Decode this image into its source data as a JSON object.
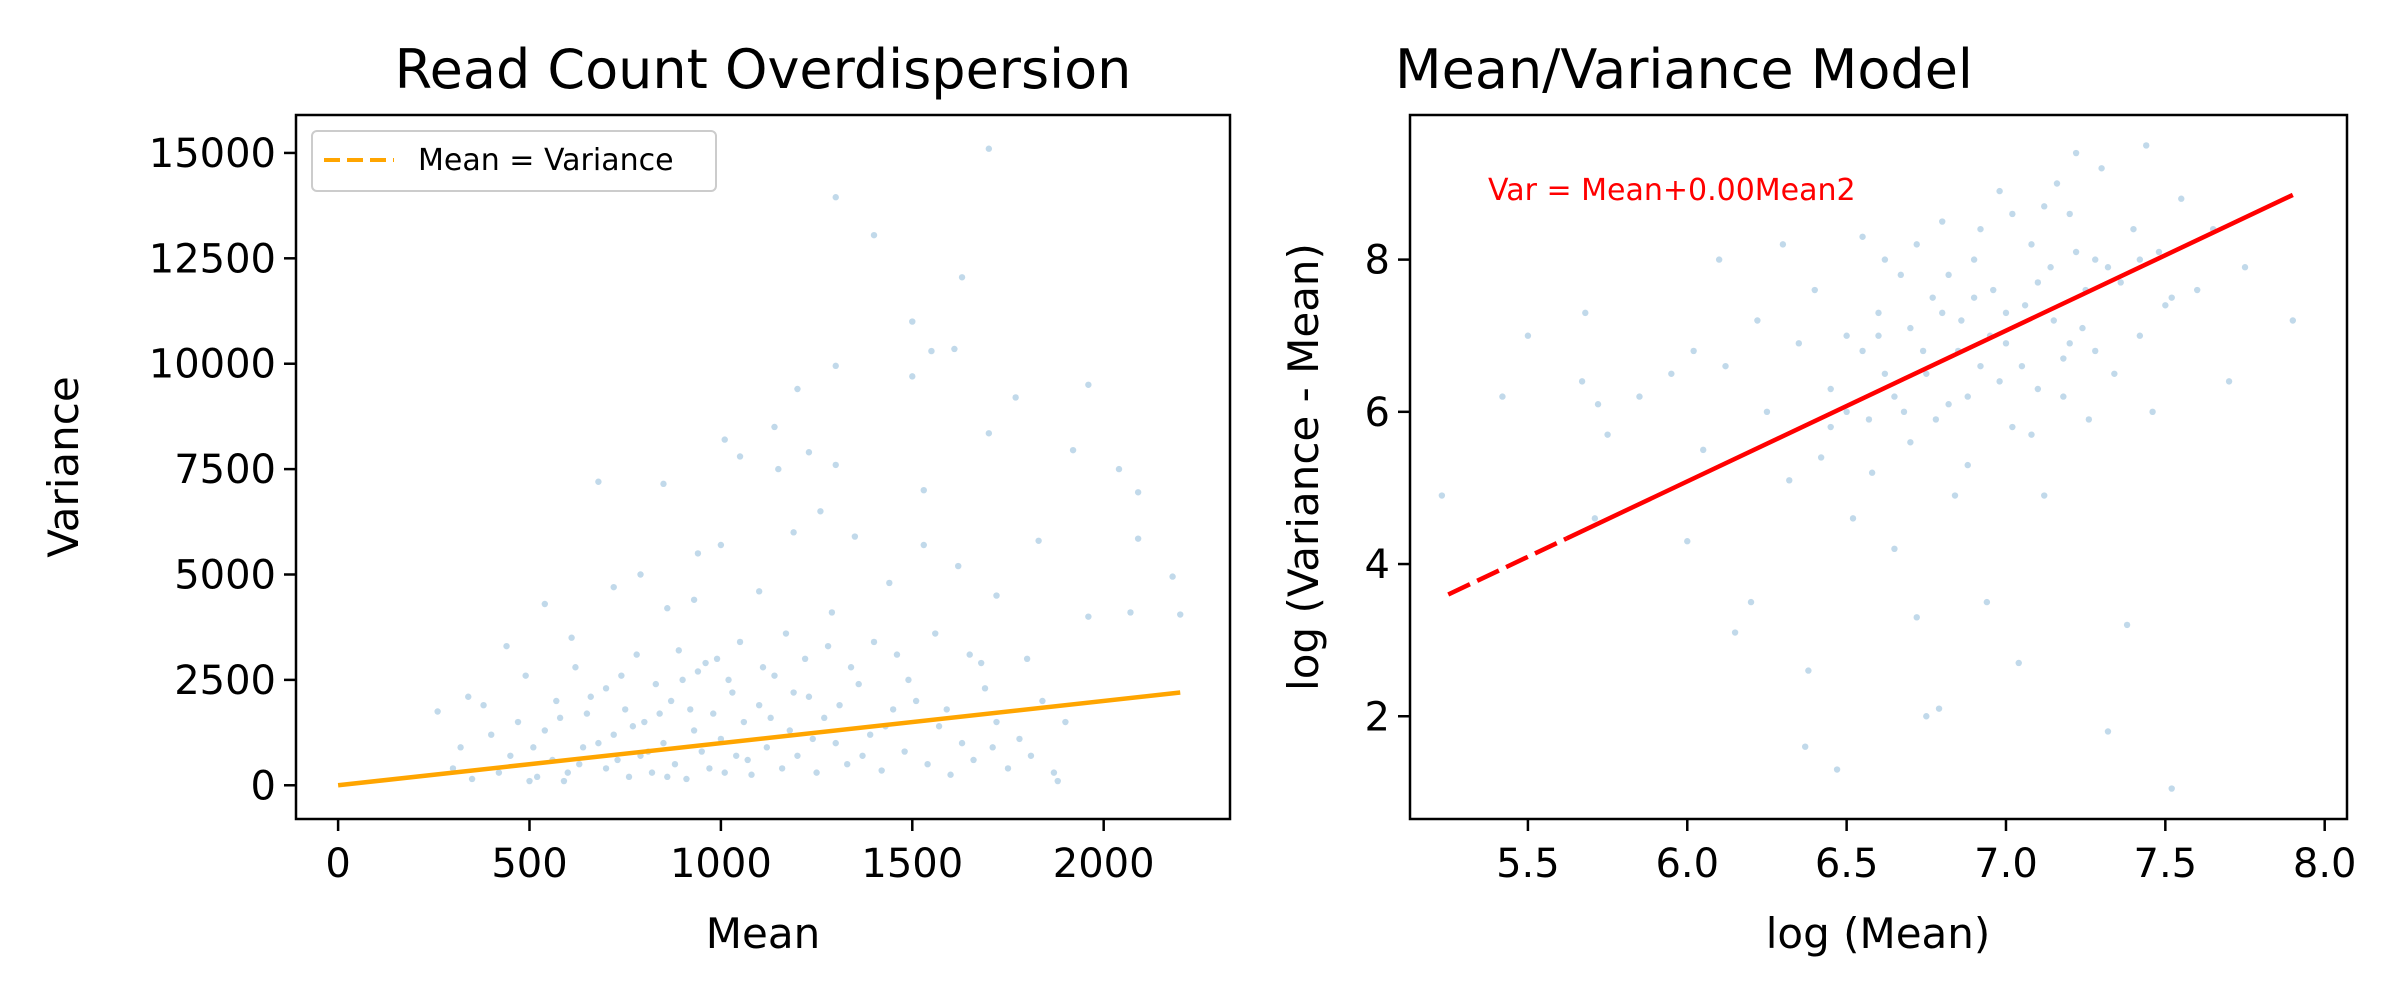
{
  "chart_data": [
    {
      "type": "scatter",
      "title": "Read Count Overdispersion",
      "xlabel": "Mean",
      "ylabel": "Variance",
      "xlim": [
        -110,
        2330
      ],
      "ylim": [
        -800,
        15900
      ],
      "xticks": [
        {
          "value": 0,
          "label": "0"
        },
        {
          "value": 500,
          "label": "500"
        },
        {
          "value": 1000,
          "label": "1000"
        },
        {
          "value": 1500,
          "label": "1500"
        },
        {
          "value": 2000,
          "label": "2000"
        }
      ],
      "yticks": [
        {
          "value": 0,
          "label": "0"
        },
        {
          "value": 2500,
          "label": "2500"
        },
        {
          "value": 5000,
          "label": "5000"
        },
        {
          "value": 7500,
          "label": "7500"
        },
        {
          "value": 10000,
          "label": "10000"
        },
        {
          "value": 12500,
          "label": "12500"
        },
        {
          "value": 15000,
          "label": "15000"
        }
      ],
      "legend": {
        "position": "upper-left",
        "entries": [
          {
            "label": "Mean = Variance",
            "color": "#FFA500",
            "style": "dashed"
          }
        ]
      },
      "scatter_color": "#1f77b4",
      "scatter_points": [
        [
          1700,
          15100
        ],
        [
          1300,
          13950
        ],
        [
          1400,
          13050
        ],
        [
          1630,
          12050
        ],
        [
          1500,
          11000
        ],
        [
          1550,
          10300
        ],
        [
          1610,
          10350
        ],
        [
          1300,
          9950
        ],
        [
          1200,
          9400
        ],
        [
          1960,
          9500
        ],
        [
          1770,
          9200
        ],
        [
          1500,
          9700
        ],
        [
          1140,
          8500
        ],
        [
          1700,
          8350
        ],
        [
          1010,
          8200
        ],
        [
          1050,
          7800
        ],
        [
          2040,
          7500
        ],
        [
          1920,
          7950
        ],
        [
          2090,
          6950
        ],
        [
          1150,
          7500
        ],
        [
          1300,
          7600
        ],
        [
          680,
          7200
        ],
        [
          1230,
          7900
        ],
        [
          1530,
          7000
        ],
        [
          850,
          7150
        ],
        [
          2090,
          5850
        ],
        [
          2180,
          4950
        ],
        [
          1830,
          5800
        ],
        [
          1620,
          5200
        ],
        [
          1190,
          6000
        ],
        [
          1260,
          6500
        ],
        [
          1000,
          5700
        ],
        [
          1350,
          5900
        ],
        [
          1530,
          5700
        ],
        [
          940,
          5500
        ],
        [
          720,
          4700
        ],
        [
          790,
          5000
        ],
        [
          860,
          4200
        ],
        [
          930,
          4400
        ],
        [
          1440,
          4800
        ],
        [
          1720,
          4500
        ],
        [
          1960,
          4000
        ],
        [
          2070,
          4100
        ],
        [
          540,
          4300
        ],
        [
          440,
          3300
        ],
        [
          1100,
          4600
        ],
        [
          1290,
          4100
        ],
        [
          1650,
          3100
        ],
        [
          2200,
          4050
        ],
        [
          610,
          3500
        ],
        [
          340,
          2100
        ],
        [
          260,
          1750
        ],
        [
          490,
          2600
        ],
        [
          380,
          1900
        ],
        [
          620,
          2800
        ],
        [
          560,
          600
        ],
        [
          600,
          300
        ],
        [
          640,
          900
        ],
        [
          700,
          400
        ],
        [
          720,
          1200
        ],
        [
          760,
          200
        ],
        [
          790,
          700
        ],
        [
          800,
          1500
        ],
        [
          820,
          300
        ],
        [
          850,
          1000
        ],
        [
          870,
          2000
        ],
        [
          880,
          500
        ],
        [
          900,
          2500
        ],
        [
          910,
          150
        ],
        [
          930,
          1300
        ],
        [
          950,
          800
        ],
        [
          960,
          2900
        ],
        [
          970,
          400
        ],
        [
          980,
          1700
        ],
        [
          1000,
          1100
        ],
        [
          1010,
          300
        ],
        [
          1030,
          2200
        ],
        [
          1040,
          700
        ],
        [
          1060,
          1500
        ],
        [
          1080,
          250
        ],
        [
          1100,
          1900
        ],
        [
          1120,
          900
        ],
        [
          1140,
          2600
        ],
        [
          1160,
          400
        ],
        [
          1180,
          1300
        ],
        [
          1200,
          700
        ],
        [
          1230,
          2100
        ],
        [
          1250,
          300
        ],
        [
          1270,
          1600
        ],
        [
          1300,
          1000
        ],
        [
          1330,
          500
        ],
        [
          1360,
          2400
        ],
        [
          1390,
          1200
        ],
        [
          1420,
          350
        ],
        [
          1450,
          1800
        ],
        [
          1480,
          800
        ],
        [
          1510,
          2000
        ],
        [
          1540,
          500
        ],
        [
          1570,
          1400
        ],
        [
          1600,
          250
        ],
        [
          1630,
          1000
        ],
        [
          1660,
          600
        ],
        [
          1690,
          2300
        ],
        [
          1720,
          1500
        ],
        [
          1750,
          400
        ],
        [
          1780,
          1100
        ],
        [
          1810,
          700
        ],
        [
          1840,
          2000
        ],
        [
          1870,
          300
        ],
        [
          1880,
          100
        ],
        [
          520,
          200
        ],
        [
          580,
          1600
        ],
        [
          660,
          2100
        ],
        [
          740,
          2600
        ],
        [
          780,
          3100
        ],
        [
          830,
          2400
        ],
        [
          890,
          3200
        ],
        [
          940,
          2700
        ],
        [
          990,
          3000
        ],
        [
          1050,
          3400
        ],
        [
          1110,
          2800
        ],
        [
          1170,
          3600
        ],
        [
          1220,
          3000
        ],
        [
          1280,
          3300
        ],
        [
          1340,
          2800
        ],
        [
          1400,
          3400
        ],
        [
          1460,
          3100
        ],
        [
          1560,
          3600
        ],
        [
          1680,
          2900
        ],
        [
          1800,
          3000
        ],
        [
          300,
          400
        ],
        [
          320,
          900
        ],
        [
          350,
          150
        ],
        [
          400,
          1200
        ],
        [
          420,
          300
        ],
        [
          450,
          700
        ],
        [
          470,
          1500
        ],
        [
          500,
          100
        ],
        [
          510,
          900
        ],
        [
          540,
          1300
        ],
        [
          570,
          2000
        ],
        [
          590,
          100
        ],
        [
          630,
          500
        ],
        [
          650,
          1700
        ],
        [
          680,
          1000
        ],
        [
          700,
          2300
        ],
        [
          730,
          600
        ],
        [
          750,
          1800
        ],
        [
          770,
          1400
        ],
        [
          810,
          800
        ],
        [
          840,
          1700
        ],
        [
          860,
          200
        ],
        [
          920,
          1800
        ],
        [
          1020,
          2500
        ],
        [
          1070,
          600
        ],
        [
          1130,
          1600
        ],
        [
          1190,
          2200
        ],
        [
          1240,
          1100
        ],
        [
          1310,
          1900
        ],
        [
          1370,
          700
        ],
        [
          1430,
          1400
        ],
        [
          1490,
          2500
        ],
        [
          1590,
          1800
        ],
        [
          1710,
          900
        ],
        [
          1900,
          1500
        ]
      ]
    },
    {
      "type": "scatter",
      "title": "Mean/Variance Model",
      "xlabel": "log (Mean)",
      "ylabel": "log (Variance - Mean)",
      "xlim": [
        5.13,
        8.07
      ],
      "ylim": [
        0.65,
        9.9
      ],
      "xticks": [
        {
          "value": 5.5,
          "label": "5.5"
        },
        {
          "value": 6.0,
          "label": "6.0"
        },
        {
          "value": 6.5,
          "label": "6.5"
        },
        {
          "value": 7.0,
          "label": "7.0"
        },
        {
          "value": 7.5,
          "label": "7.5"
        },
        {
          "value": 8.0,
          "label": "8.0"
        }
      ],
      "yticks": [
        {
          "value": 2,
          "label": "2"
        },
        {
          "value": 4,
          "label": "4"
        },
        {
          "value": 6,
          "label": "6"
        },
        {
          "value": 8,
          "label": "8"
        }
      ],
      "annotation": "Var = Mean+0.00Mean2",
      "fit_line": {
        "x": [
          5.25,
          7.9
        ],
        "y": [
          3.6,
          8.85
        ],
        "color": "#FF0000"
      },
      "scatter_color": "#1f77b4",
      "scatter_points": [
        [
          5.23,
          4.9
        ],
        [
          5.42,
          6.2
        ],
        [
          5.5,
          7.0
        ],
        [
          5.68,
          7.3
        ],
        [
          5.67,
          6.4
        ],
        [
          5.72,
          6.1
        ],
        [
          5.75,
          5.7
        ],
        [
          5.71,
          4.6
        ],
        [
          5.85,
          6.2
        ],
        [
          5.95,
          6.5
        ],
        [
          6.0,
          4.3
        ],
        [
          6.02,
          6.8
        ],
        [
          6.05,
          5.5
        ],
        [
          6.1,
          8.0
        ],
        [
          6.12,
          6.6
        ],
        [
          6.15,
          3.1
        ],
        [
          6.2,
          3.5
        ],
        [
          6.22,
          7.2
        ],
        [
          6.25,
          6.0
        ],
        [
          6.3,
          8.2
        ],
        [
          6.32,
          5.1
        ],
        [
          6.35,
          6.9
        ],
        [
          6.37,
          1.6
        ],
        [
          6.38,
          2.6
        ],
        [
          6.4,
          7.6
        ],
        [
          6.42,
          5.4
        ],
        [
          6.45,
          6.3
        ],
        [
          6.47,
          1.3
        ],
        [
          6.5,
          7.0
        ],
        [
          6.52,
          4.6
        ],
        [
          6.55,
          8.3
        ],
        [
          6.57,
          5.9
        ],
        [
          6.6,
          7.3
        ],
        [
          6.62,
          6.5
        ],
        [
          6.65,
          4.2
        ],
        [
          6.67,
          7.8
        ],
        [
          6.7,
          5.6
        ],
        [
          6.72,
          3.3
        ],
        [
          6.74,
          6.8
        ],
        [
          6.75,
          2.0
        ],
        [
          6.77,
          7.5
        ],
        [
          6.79,
          2.1
        ],
        [
          6.8,
          8.5
        ],
        [
          6.82,
          6.1
        ],
        [
          6.84,
          4.9
        ],
        [
          6.86,
          7.2
        ],
        [
          6.88,
          5.3
        ],
        [
          6.9,
          8.0
        ],
        [
          6.92,
          6.6
        ],
        [
          6.94,
          3.5
        ],
        [
          6.96,
          7.6
        ],
        [
          6.98,
          8.9
        ],
        [
          7.0,
          6.9
        ],
        [
          7.02,
          5.8
        ],
        [
          7.04,
          2.7
        ],
        [
          7.06,
          7.4
        ],
        [
          7.08,
          8.2
        ],
        [
          7.1,
          6.3
        ],
        [
          7.12,
          4.9
        ],
        [
          7.14,
          7.9
        ],
        [
          7.16,
          9.0
        ],
        [
          7.18,
          6.7
        ],
        [
          7.2,
          8.6
        ],
        [
          7.22,
          9.4
        ],
        [
          7.24,
          7.1
        ],
        [
          7.26,
          5.9
        ],
        [
          7.28,
          8.0
        ],
        [
          7.3,
          9.2
        ],
        [
          7.32,
          1.8
        ],
        [
          7.34,
          6.5
        ],
        [
          7.36,
          7.7
        ],
        [
          7.38,
          3.2
        ],
        [
          7.4,
          8.4
        ],
        [
          7.42,
          7.0
        ],
        [
          7.44,
          9.5
        ],
        [
          7.46,
          6.0
        ],
        [
          7.48,
          8.1
        ],
        [
          7.5,
          7.4
        ],
        [
          7.52,
          1.05
        ],
        [
          7.55,
          8.8
        ],
        [
          7.6,
          7.6
        ],
        [
          7.65,
          8.4
        ],
        [
          7.7,
          6.4
        ],
        [
          7.75,
          7.9
        ],
        [
          7.9,
          7.2
        ],
        [
          6.55,
          6.8
        ],
        [
          6.6,
          7.0
        ],
        [
          6.65,
          6.2
        ],
        [
          6.7,
          7.1
        ],
        [
          6.75,
          6.5
        ],
        [
          6.8,
          7.3
        ],
        [
          6.85,
          6.8
        ],
        [
          6.9,
          7.5
        ],
        [
          6.95,
          7.0
        ],
        [
          7.0,
          7.3
        ],
        [
          7.05,
          6.6
        ],
        [
          7.1,
          7.7
        ],
        [
          7.15,
          7.2
        ],
        [
          7.2,
          6.9
        ],
        [
          7.25,
          7.6
        ],
        [
          6.45,
          5.8
        ],
        [
          6.5,
          6.0
        ],
        [
          6.58,
          5.2
        ],
        [
          6.68,
          6.0
        ],
        [
          6.78,
          5.9
        ],
        [
          6.88,
          6.2
        ],
        [
          6.98,
          6.4
        ],
        [
          7.08,
          5.7
        ],
        [
          7.18,
          6.2
        ],
        [
          7.28,
          6.8
        ],
        [
          6.62,
          8.0
        ],
        [
          6.72,
          8.2
        ],
        [
          6.82,
          7.8
        ],
        [
          6.92,
          8.4
        ],
        [
          7.02,
          8.6
        ],
        [
          7.12,
          8.7
        ],
        [
          7.22,
          8.1
        ],
        [
          7.32,
          7.9
        ],
        [
          7.42,
          8.0
        ],
        [
          7.52,
          7.5
        ]
      ]
    }
  ]
}
